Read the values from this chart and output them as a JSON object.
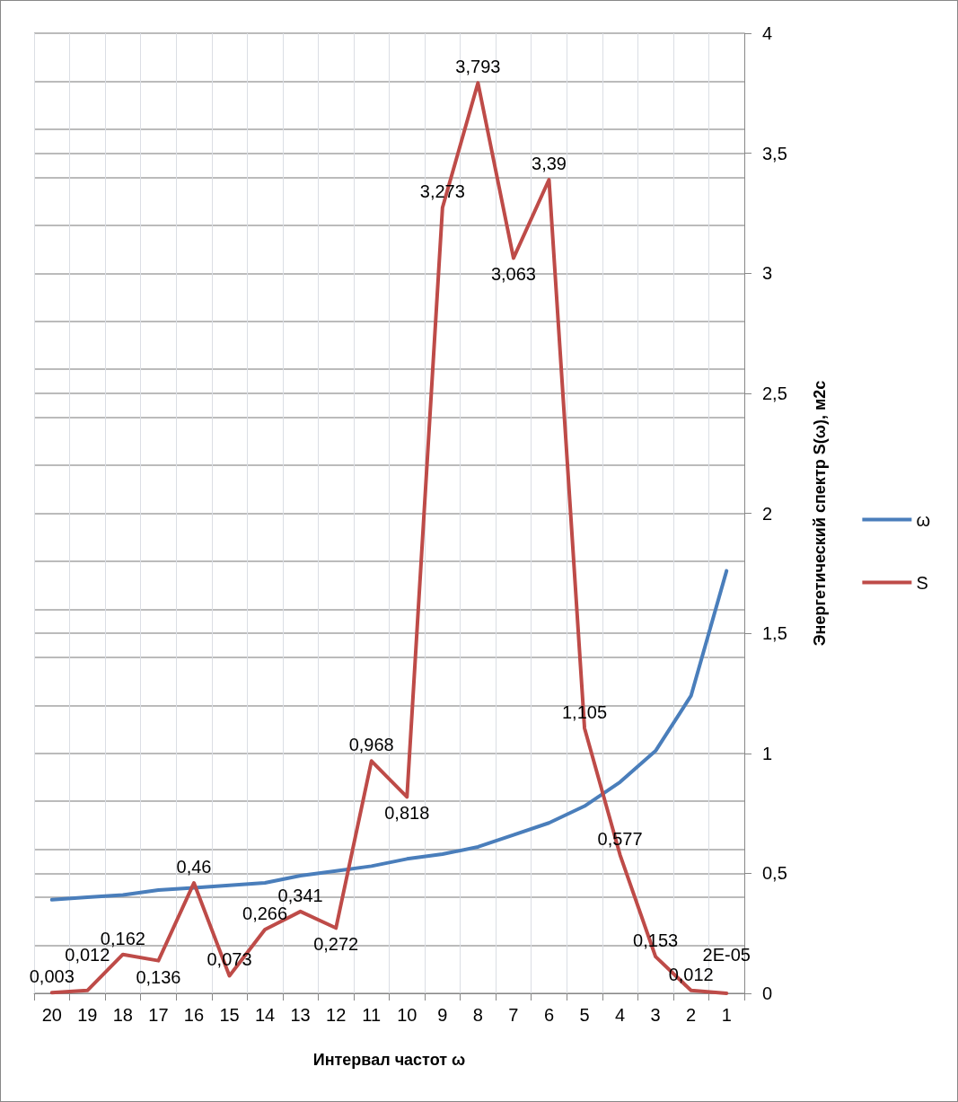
{
  "chart_data": {
    "type": "line",
    "xlabel": "Интервал частот ω",
    "ylabel": "Энергетический спектр S(ω), м2с",
    "categories": [
      "20",
      "19",
      "18",
      "17",
      "16",
      "15",
      "14",
      "13",
      "12",
      "11",
      "10",
      "9",
      "8",
      "7",
      "6",
      "5",
      "4",
      "3",
      "2",
      "1"
    ],
    "series": [
      {
        "name": "ω",
        "color": "#4a7ebb",
        "values": [
          0.39,
          0.4,
          0.41,
          0.43,
          0.44,
          0.45,
          0.46,
          0.49,
          0.51,
          0.53,
          0.56,
          0.58,
          0.61,
          0.66,
          0.71,
          0.78,
          0.88,
          1.01,
          1.24,
          1.76
        ]
      },
      {
        "name": "S",
        "color": "#be4b48",
        "values": [
          0.003,
          0.012,
          0.162,
          0.136,
          0.46,
          0.073,
          0.266,
          0.341,
          0.272,
          0.968,
          0.818,
          3.273,
          3.793,
          3.063,
          3.39,
          1.105,
          0.577,
          0.153,
          0.012,
          2e-05
        ],
        "value_labels": [
          "0,003",
          "0,012",
          "0,162",
          "0,136",
          "0,46",
          "0,073",
          "0,266",
          "0,341",
          "0,272",
          "0,968",
          "0,818",
          "3,273",
          "3,793",
          "3,063",
          "3,39",
          "1,105",
          "0,577",
          "0,153",
          "0,012",
          "2E-05"
        ]
      }
    ],
    "ylim": [
      0,
      4
    ],
    "yticks": [
      0,
      {
        "value": 0.5,
        "label": "0,5"
      },
      1,
      {
        "value": 1.5,
        "label": "1,5"
      },
      2,
      {
        "value": 2.5,
        "label": "2,5"
      },
      3,
      {
        "value": 3.5,
        "label": "3,5"
      },
      4
    ],
    "grid": true,
    "legend": "right",
    "marker": "none",
    "line_style": "solid"
  }
}
